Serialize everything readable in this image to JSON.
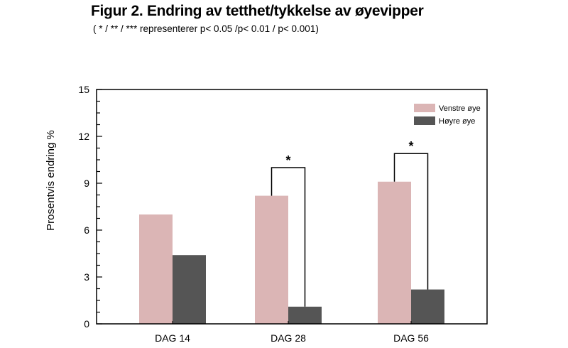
{
  "header": {
    "title": "Figur 2. Endring av tetthet/tykkelse av øyevipper",
    "subtitle": "( * / ** / *** representerer p< 0.05 /p< 0.01 / p< 0.001)"
  },
  "chart_data": {
    "type": "bar",
    "categories": [
      "DAG 14",
      "DAG 28",
      "DAG 56"
    ],
    "series": [
      {
        "name": "Venstre øye",
        "values": [
          7.0,
          8.2,
          9.1
        ],
        "color": "#dbb5b5"
      },
      {
        "name": "Høyre øye",
        "values": [
          4.4,
          1.1,
          2.2
        ],
        "color": "#555555"
      }
    ],
    "ylabel": "Prosentvis endring %",
    "ylim": [
      0,
      15
    ],
    "yticks": [
      "0",
      "3",
      "6",
      "9",
      "12",
      "15"
    ],
    "legend_position": "top-right",
    "significance": [
      {
        "category": "DAG 28",
        "label": "*",
        "bracket_top": 10.0
      },
      {
        "category": "DAG 56",
        "label": "*",
        "bracket_top": 10.9
      }
    ]
  }
}
